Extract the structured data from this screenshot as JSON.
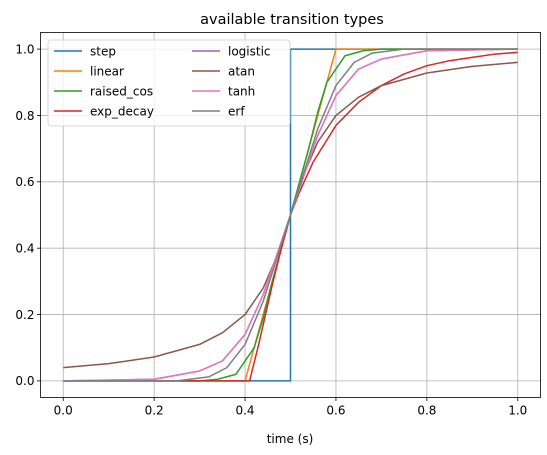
{
  "chart_data": {
    "type": "line",
    "title": "available transition types",
    "xlabel": "time (s)",
    "ylabel": "",
    "xlim": [
      -0.05,
      1.05
    ],
    "ylim": [
      -0.05,
      1.05
    ],
    "xticks": [
      0.0,
      0.2,
      0.4,
      0.6,
      0.8,
      1.0
    ],
    "xtick_labels": [
      "0.0",
      "0.2",
      "0.4",
      "0.6",
      "0.8",
      "1.0"
    ],
    "yticks": [
      0.0,
      0.2,
      0.4,
      0.6,
      0.8,
      1.0
    ],
    "ytick_labels": [
      "0.0",
      "0.2",
      "0.4",
      "0.6",
      "0.8",
      "1.0"
    ],
    "grid": true,
    "legend": {
      "placement": "top-left",
      "columns": 2
    },
    "series": [
      {
        "name": "step",
        "color": "#1f77b4",
        "x": [
          0.0,
          0.5,
          0.5,
          1.0
        ],
        "y": [
          0.0,
          0.0,
          1.0,
          1.0
        ]
      },
      {
        "name": "linear",
        "color": "#ff7f0e",
        "x": [
          0.0,
          0.4,
          0.6,
          1.0
        ],
        "y": [
          0.0,
          0.0,
          1.0,
          1.0
        ]
      },
      {
        "name": "raised_cos",
        "color": "#2ca02c",
        "x": [
          0.0,
          0.3,
          0.34,
          0.38,
          0.42,
          0.44,
          0.46,
          0.48,
          0.5,
          0.52,
          0.54,
          0.56,
          0.58,
          0.62,
          0.66,
          0.7,
          1.0
        ],
        "y": [
          0.0,
          0.0,
          0.005,
          0.02,
          0.1,
          0.19,
          0.3,
          0.4,
          0.5,
          0.6,
          0.7,
          0.81,
          0.9,
          0.98,
          0.995,
          1.0,
          1.0
        ]
      },
      {
        "name": "exp_decay",
        "color": "#d62728",
        "x": [
          0.0,
          0.41,
          0.43,
          0.46,
          0.48,
          0.5,
          0.52,
          0.55,
          0.6,
          0.65,
          0.7,
          0.75,
          0.8,
          0.85,
          0.9,
          0.95,
          1.0
        ],
        "y": [
          0.0,
          0.0,
          0.11,
          0.29,
          0.4,
          0.5,
          0.57,
          0.66,
          0.77,
          0.84,
          0.89,
          0.925,
          0.95,
          0.965,
          0.975,
          0.985,
          0.99
        ]
      },
      {
        "name": "logistic",
        "color": "#9467bd",
        "x": [
          0.0,
          0.2,
          0.3,
          0.35,
          0.4,
          0.44,
          0.47,
          0.5,
          0.53,
          0.56,
          0.6,
          0.65,
          0.7,
          0.8,
          1.0
        ],
        "y": [
          0.0,
          0.005,
          0.03,
          0.06,
          0.14,
          0.26,
          0.38,
          0.5,
          0.62,
          0.74,
          0.86,
          0.94,
          0.97,
          0.995,
          1.0
        ]
      },
      {
        "name": "atan",
        "color": "#8c564b",
        "x": [
          0.0,
          0.1,
          0.2,
          0.3,
          0.35,
          0.4,
          0.44,
          0.47,
          0.5,
          0.53,
          0.56,
          0.6,
          0.65,
          0.7,
          0.8,
          0.9,
          1.0
        ],
        "y": [
          0.04,
          0.052,
          0.072,
          0.11,
          0.145,
          0.2,
          0.28,
          0.375,
          0.5,
          0.625,
          0.72,
          0.8,
          0.855,
          0.89,
          0.928,
          0.948,
          0.96
        ]
      },
      {
        "name": "tanh",
        "color": "#e377c2",
        "x": [
          0.0,
          0.2,
          0.3,
          0.35,
          0.4,
          0.44,
          0.47,
          0.5,
          0.53,
          0.56,
          0.6,
          0.65,
          0.7,
          0.8,
          1.0
        ],
        "y": [
          0.0,
          0.005,
          0.03,
          0.06,
          0.14,
          0.26,
          0.38,
          0.5,
          0.62,
          0.74,
          0.86,
          0.94,
          0.97,
          0.995,
          1.0
        ]
      },
      {
        "name": "erf",
        "color": "#7f7f7f",
        "x": [
          0.0,
          0.25,
          0.32,
          0.36,
          0.4,
          0.44,
          0.47,
          0.5,
          0.53,
          0.56,
          0.6,
          0.64,
          0.68,
          0.75,
          1.0
        ],
        "y": [
          0.0,
          0.0,
          0.012,
          0.04,
          0.11,
          0.24,
          0.37,
          0.5,
          0.63,
          0.76,
          0.89,
          0.96,
          0.988,
          1.0,
          1.0
        ]
      }
    ]
  }
}
